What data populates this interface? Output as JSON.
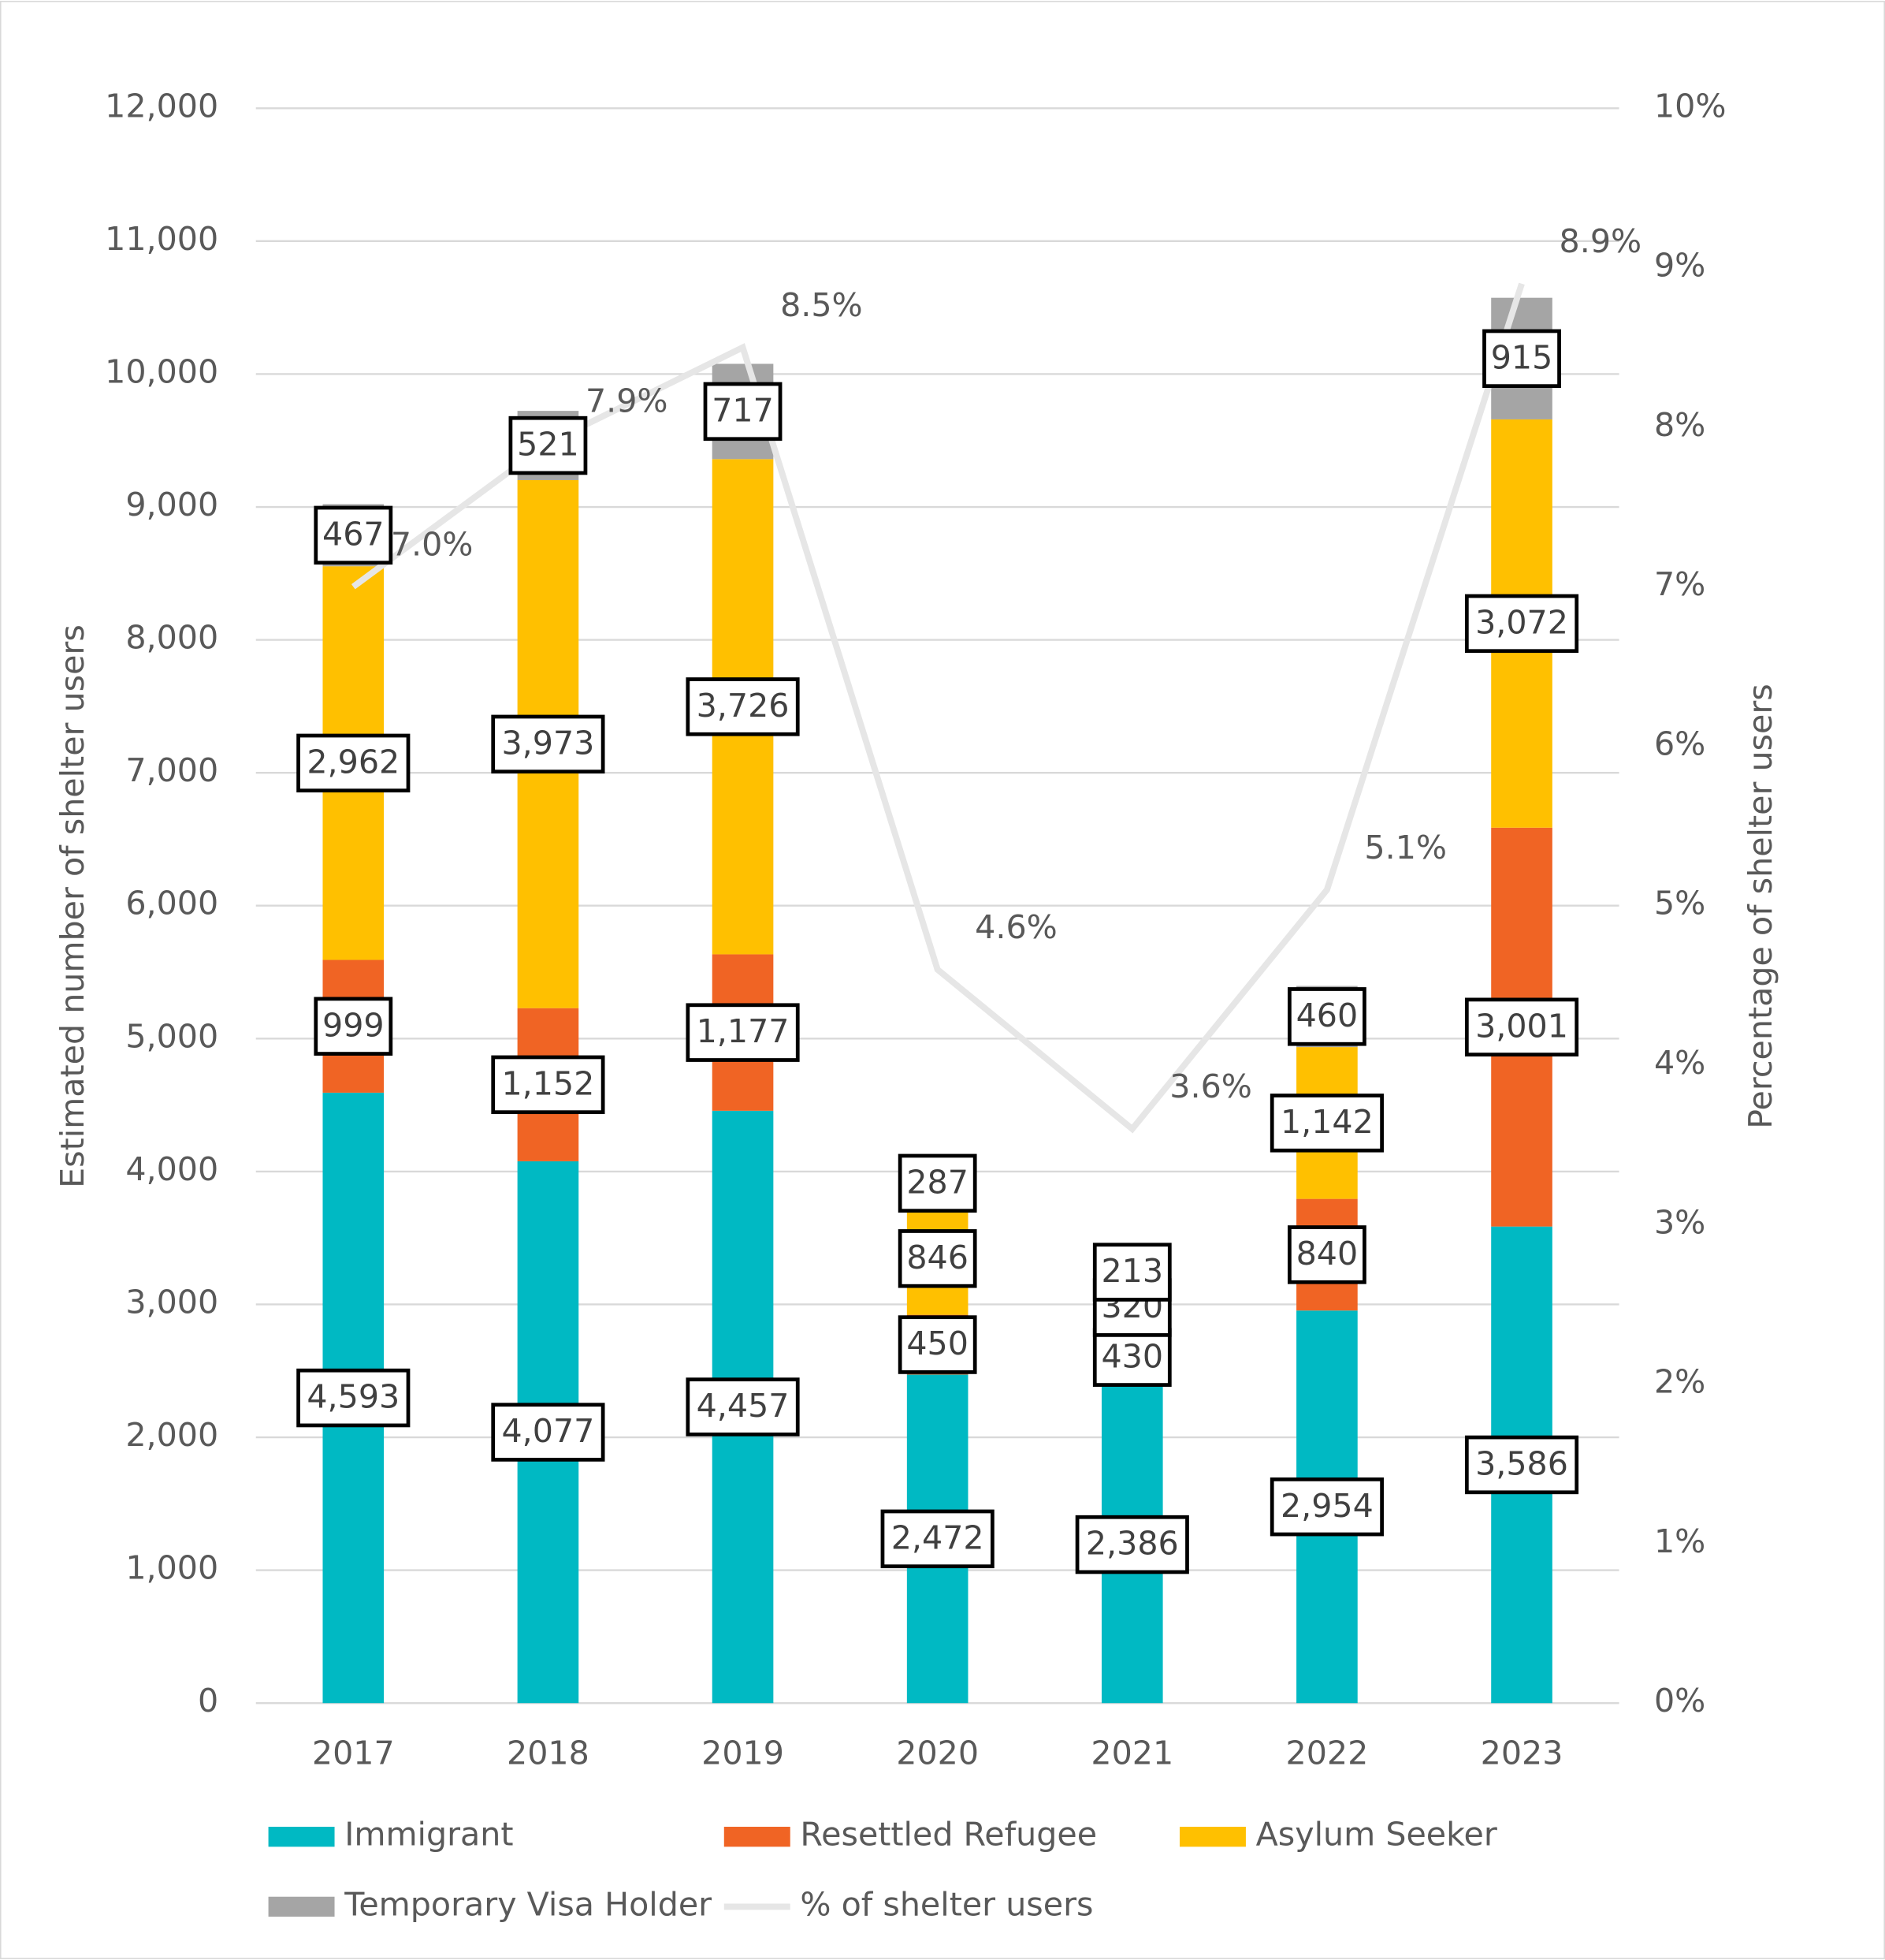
{
  "chart_data": {
    "type": "bar",
    "stacked": true,
    "y_label": "Estimated number of shelter users",
    "y2_label": "Percentage of shelter users",
    "categories": [
      "2017",
      "2018",
      "2019",
      "2020",
      "2021",
      "2022",
      "2023"
    ],
    "series": [
      {
        "name": "Immigrant",
        "color": "#00b9c3",
        "values": [
          4593,
          4077,
          4457,
          2472,
          2386,
          2954,
          3586
        ],
        "value_labels": [
          "4,593",
          "4,077",
          "4,457",
          "2,472",
          "2,386",
          "2,954",
          "3,586"
        ]
      },
      {
        "name": "Resettled Refugee",
        "color": "#f06424",
        "values": [
          999,
          1152,
          1177,
          450,
          430,
          840,
          3001
        ],
        "value_labels": [
          "999",
          "1,152",
          "1,177",
          "450",
          "430",
          "840",
          "3,001"
        ]
      },
      {
        "name": "Asylum Seeker",
        "color": "#ffc000",
        "values": [
          2962,
          3973,
          3726,
          846,
          320,
          1142,
          3072
        ],
        "value_labels": [
          "2,962",
          "3,973",
          "3,726",
          "846",
          "320",
          "1,142",
          "3,072"
        ]
      },
      {
        "name": "Temporary Visa Holder",
        "color": "#a5a5a5",
        "values": [
          467,
          521,
          717,
          287,
          213,
          460,
          915
        ]
      },
      {
        "name": "% of shelter users",
        "type": "line",
        "axis": "y2",
        "color": "#e6e6e6",
        "values": [
          7.0,
          7.9,
          8.5,
          4.6,
          3.6,
          5.1,
          8.9
        ],
        "value_labels": [
          "7.0%",
          "7.9%",
          "8.5%",
          "4.6%",
          "3.6%",
          "5.1%",
          "8.9%"
        ]
      }
    ],
    "ylim": [
      0,
      12000
    ],
    "yticks": [
      0,
      {
        "value": 1000,
        "label": "1,000"
      },
      {
        "value": 2000,
        "label": "2,000"
      },
      {
        "value": 3000,
        "label": "3,000"
      },
      {
        "value": 4000,
        "label": "4,000"
      },
      {
        "value": 5000,
        "label": "5,000"
      },
      {
        "value": 6000,
        "label": "6,000"
      },
      {
        "value": 7000,
        "label": "7,000"
      },
      {
        "value": 8000,
        "label": "8,000"
      },
      {
        "value": 9000,
        "label": "9,000"
      },
      {
        "value": 10000,
        "label": "10,000"
      },
      {
        "value": 11000,
        "label": "11,000"
      },
      {
        "value": 12000,
        "label": "12,000"
      }
    ],
    "y2lim": [
      0,
      10
    ],
    "y2ticks": [
      {
        "value": 0,
        "label": "0%"
      },
      {
        "value": 1,
        "label": "1%"
      },
      {
        "value": 2,
        "label": "2%"
      },
      {
        "value": 3,
        "label": "3%"
      },
      {
        "value": 4,
        "label": "4%"
      },
      {
        "value": 5,
        "label": "5%"
      },
      {
        "value": 6,
        "label": "6%"
      },
      {
        "value": 7,
        "label": "7%"
      },
      {
        "value": 8,
        "label": "8%"
      },
      {
        "value": 9,
        "label": "9%"
      },
      {
        "value": 10,
        "label": "10%"
      }
    ],
    "grid": true
  }
}
